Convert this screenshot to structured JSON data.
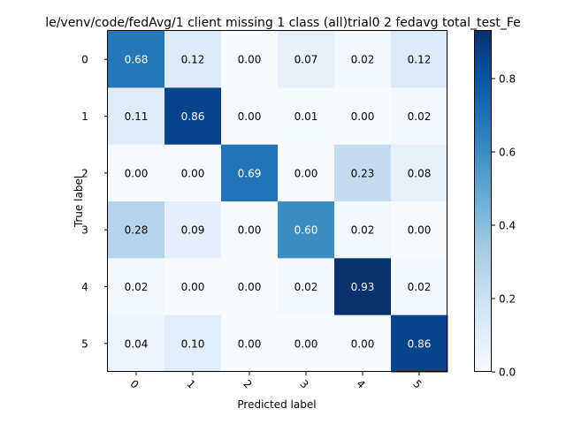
{
  "chart_data": {
    "type": "heatmap",
    "title": "le/venv/code/fedAvg/1 client missing 1 class (all)trial0 2 fedavg total_test_Fe",
    "xlabel": "Predicted label",
    "ylabel": "True label",
    "x_categories": [
      "0",
      "1",
      "2",
      "3",
      "4",
      "5"
    ],
    "y_categories": [
      "0",
      "1",
      "2",
      "3",
      "4",
      "5"
    ],
    "values": [
      [
        0.68,
        0.12,
        0.0,
        0.07,
        0.02,
        0.12
      ],
      [
        0.11,
        0.86,
        0.0,
        0.01,
        0.0,
        0.02
      ],
      [
        0.0,
        0.0,
        0.69,
        0.0,
        0.23,
        0.08
      ],
      [
        0.28,
        0.09,
        0.0,
        0.6,
        0.02,
        0.0
      ],
      [
        0.02,
        0.0,
        0.0,
        0.02,
        0.93,
        0.02
      ],
      [
        0.04,
        0.1,
        0.0,
        0.0,
        0.0,
        0.86
      ]
    ],
    "value_format": "0.00",
    "colormap": "Blues",
    "vmin": 0.0,
    "vmax": 0.93,
    "colorbar": {
      "ticks": [
        "0.0",
        "0.2",
        "0.4",
        "0.6",
        "0.8"
      ],
      "tick_values": [
        0.0,
        0.2,
        0.4,
        0.6,
        0.8
      ]
    },
    "x_tick_rotation_deg": 45,
    "grid": false
  }
}
